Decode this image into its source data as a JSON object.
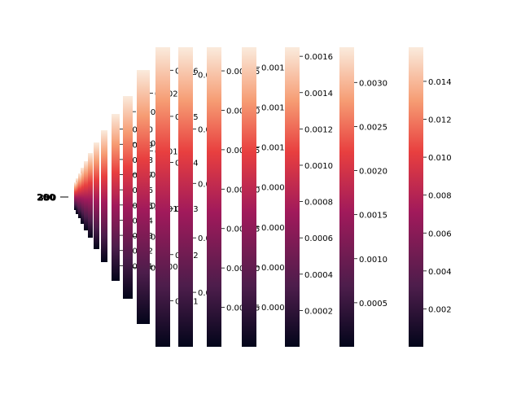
{
  "chart_data": {
    "type": "heatmap",
    "description_note": "Repeated seaborn heatmap colorbars stacked in perspective; only the colorbar scales are visible.",
    "colormap": [
      "#03051a",
      "#4c1d4b",
      "#a11a5b",
      "#e83f3f",
      "#f69c73",
      "#faebdd"
    ],
    "colorbars": [
      {
        "min": 0,
        "max": 0.0065,
        "ticks": [
          "0.001",
          "0.002",
          "0.003",
          "0.004",
          "0.005",
          "0.006"
        ]
      },
      {
        "min": 0,
        "max": 0.0055,
        "ticks": [
          "0.001",
          "0.002",
          "0.003",
          "0.004",
          "0.005"
        ]
      },
      {
        "min": 0,
        "max": 0.0019,
        "ticks": [
          "0.00025",
          "0.00050",
          "0.00075",
          "0.00100",
          "0.00125",
          "0.00150",
          "0.00175"
        ]
      },
      {
        "min": 0,
        "max": 0.0015,
        "ticks": [
          "0.0002",
          "0.0004",
          "0.0006",
          "0.0008",
          "0.0010",
          "0.0012",
          "0.0014"
        ]
      },
      {
        "min": 0,
        "max": 0.00165,
        "ticks": [
          "0.0002",
          "0.0004",
          "0.0006",
          "0.0008",
          "0.0010",
          "0.0012",
          "0.0014",
          "0.0016"
        ]
      },
      {
        "min": 0,
        "max": 0.0034,
        "ticks": [
          "0.0005",
          "0.0010",
          "0.0015",
          "0.0020",
          "0.0025",
          "0.0030"
        ]
      },
      {
        "min": 0,
        "max": 0.0158,
        "ticks": [
          "0.002",
          "0.004",
          "0.006",
          "0.008",
          "0.010",
          "0.012",
          "0.014"
        ]
      },
      {
        "min": 0,
        "max": 0.0022,
        "ticks": [
          "0.0005",
          "0.0010",
          "0.0015",
          "0.0020"
        ]
      },
      {
        "min": 0,
        "max": 0.0013,
        "ticks": [
          "0.0002",
          "0.0004",
          "0.0006",
          "0.0008",
          "0.0010",
          "0.0012"
        ]
      },
      {
        "min": 0,
        "max": 0.0011,
        "ticks": [
          "0.0001",
          "0.0002",
          "0.0003",
          "0.0004",
          "0.0005",
          "0.0006",
          "0.0007",
          "0.0008",
          "0.0009",
          "0.0010"
        ]
      }
    ],
    "overlapping_labels": [
      "200",
      "250",
      "300"
    ]
  }
}
